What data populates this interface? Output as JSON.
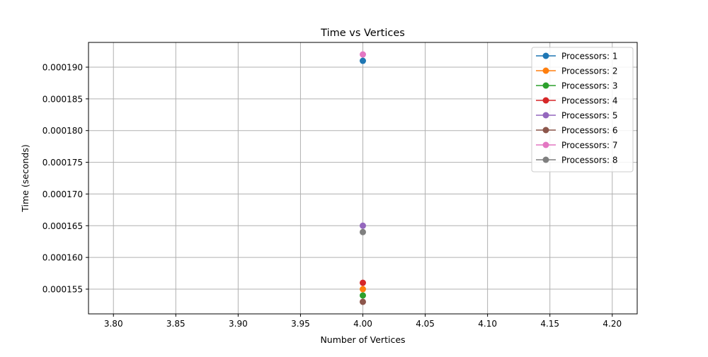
{
  "chart_data": {
    "type": "line",
    "title": "Time vs Vertices",
    "xlabel": "Number of Vertices",
    "ylabel": "Time (seconds)",
    "xlim": [
      3.78,
      4.22
    ],
    "ylim": [
      0.0001511,
      0.0001939
    ],
    "x_ticks": [
      "3.80",
      "3.85",
      "3.90",
      "3.95",
      "4.00",
      "4.05",
      "4.10",
      "4.15",
      "4.20"
    ],
    "x_tick_values": [
      3.8,
      3.85,
      3.9,
      3.95,
      4.0,
      4.05,
      4.1,
      4.15,
      4.2
    ],
    "y_ticks": [
      "0.000155",
      "0.000160",
      "0.000165",
      "0.000170",
      "0.000175",
      "0.000180",
      "0.000185",
      "0.000190"
    ],
    "y_tick_values": [
      0.000155,
      0.00016,
      0.000165,
      0.00017,
      0.000175,
      0.00018,
      0.000185,
      0.00019
    ],
    "grid": true,
    "legend_position": "top-right",
    "series": [
      {
        "name": "Processors: 1",
        "color": "#1f77b4",
        "x": [
          4.0
        ],
        "y": [
          0.000191
        ]
      },
      {
        "name": "Processors: 2",
        "color": "#ff7f0e",
        "x": [
          4.0
        ],
        "y": [
          0.000155
        ]
      },
      {
        "name": "Processors: 3",
        "color": "#2ca02c",
        "x": [
          4.0
        ],
        "y": [
          0.000154
        ]
      },
      {
        "name": "Processors: 4",
        "color": "#d62728",
        "x": [
          4.0
        ],
        "y": [
          0.000156
        ]
      },
      {
        "name": "Processors: 5",
        "color": "#9467bd",
        "x": [
          4.0
        ],
        "y": [
          0.000165
        ]
      },
      {
        "name": "Processors: 6",
        "color": "#8c564b",
        "x": [
          4.0
        ],
        "y": [
          0.000153
        ]
      },
      {
        "name": "Processors: 7",
        "color": "#e377c2",
        "x": [
          4.0
        ],
        "y": [
          0.000192
        ]
      },
      {
        "name": "Processors: 8",
        "color": "#7f7f7f",
        "x": [
          4.0
        ],
        "y": [
          0.000164
        ]
      }
    ]
  }
}
